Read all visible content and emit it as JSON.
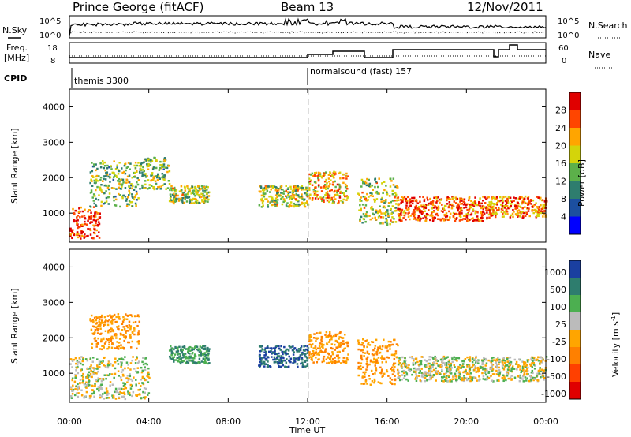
{
  "header": {
    "station": "Prince George (fitACF)",
    "beam": "Beam 13",
    "date": "12/Nov/2011"
  },
  "labels": {
    "nsky": "N.Sky",
    "nsearch": "N.Search",
    "freq_line1": "Freq.",
    "freq_line2": "[MHz]",
    "nave": "Nave",
    "cpid": "CPID",
    "sky_tick_top": "10^5",
    "sky_tick_bottom": "10^0",
    "search_tick_top": "10^5",
    "search_tick_bottom": "10^0",
    "freq_tick_top": "18",
    "freq_tick_bottom": "8",
    "nave_tick_top": "60",
    "nave_tick_bottom": "0",
    "power_label": "Power [dB]",
    "velocity_label": "Velocity [m s",
    "velocity_exp": "-1",
    "velocity_close": "]"
  },
  "cpid": [
    {
      "label": "themis 3300",
      "start_hour": 0
    },
    {
      "label": "normalsound (fast) 157",
      "start_hour": 12
    }
  ],
  "chart_data": [
    {
      "type": "heatmap",
      "title": "Power",
      "ylabel": "Slant Range [km]",
      "xlabel": "Time UT",
      "x_ticks": [
        "00:00",
        "04:00",
        "08:00",
        "12:00",
        "16:00",
        "20:00",
        "00:00"
      ],
      "y_ticks": [
        "1000",
        "2000",
        "3000",
        "4000"
      ],
      "xlim": [
        0,
        24
      ],
      "ylim": [
        180,
        4500
      ],
      "colorbar": {
        "label": "Power [dB]",
        "ticks": [
          "4",
          "8",
          "12",
          "16",
          "20",
          "24",
          "28"
        ],
        "range": [
          0,
          30
        ],
        "colors": [
          "#0000ff",
          "#1c4fa0",
          "#2e7d6e",
          "#5cb04a",
          "#d4d40a",
          "#ffa500",
          "#ff4500",
          "#e00000"
        ]
      },
      "scatter_regions": [
        {
          "hours": [
            0.0,
            1.5
          ],
          "range_km": [
            300,
            1200
          ],
          "power_db": 26
        },
        {
          "hours": [
            1.0,
            3.5
          ],
          "range_km": [
            1200,
            2500
          ],
          "power_db": 14
        },
        {
          "hours": [
            3.5,
            5.0
          ],
          "range_km": [
            1700,
            2600
          ],
          "power_db": 14
        },
        {
          "hours": [
            5.0,
            7.0
          ],
          "range_km": [
            1300,
            1800
          ],
          "power_db": 16
        },
        {
          "hours": [
            9.5,
            12.0
          ],
          "range_km": [
            1200,
            1800
          ],
          "power_db": 16
        },
        {
          "hours": [
            12.0,
            14.0
          ],
          "range_km": [
            1300,
            2200
          ],
          "power_db": 20
        },
        {
          "hours": [
            14.5,
            16.5
          ],
          "range_km": [
            700,
            2000
          ],
          "power_db": 16
        },
        {
          "hours": [
            16.5,
            21.0
          ],
          "range_km": [
            800,
            1500
          ],
          "power_db": 24
        },
        {
          "hours": [
            21.0,
            24.0
          ],
          "range_km": [
            900,
            1500
          ],
          "power_db": 22
        }
      ]
    },
    {
      "type": "heatmap",
      "title": "Velocity",
      "ylabel": "Slant Range [km]",
      "xlabel": "Time UT",
      "x_ticks": [
        "00:00",
        "04:00",
        "08:00",
        "12:00",
        "16:00",
        "20:00",
        "00:00"
      ],
      "y_ticks": [
        "1000",
        "2000",
        "3000",
        "4000"
      ],
      "xlim": [
        0,
        24
      ],
      "ylim": [
        180,
        4500
      ],
      "colorbar": {
        "label": "Velocity [m s-1]",
        "ticks": [
          "1000",
          "500",
          "100",
          "25",
          "-25",
          "-100",
          "-500",
          "-1000"
        ],
        "colors": [
          "#1a3fa0",
          "#2e7d6e",
          "#4caf50",
          "#bbbbbb",
          "#ffa500",
          "#ff8000",
          "#ff4000",
          "#e00000"
        ]
      },
      "scatter_regions": [
        {
          "hours": [
            0.0,
            4.0
          ],
          "range_km": [
            300,
            1500
          ],
          "velocity": 0
        },
        {
          "hours": [
            1.0,
            3.5
          ],
          "range_km": [
            1700,
            2700
          ],
          "velocity": -100
        },
        {
          "hours": [
            5.0,
            7.0
          ],
          "range_km": [
            1300,
            1800
          ],
          "velocity": 100
        },
        {
          "hours": [
            9.5,
            12.0
          ],
          "range_km": [
            1200,
            1800
          ],
          "velocity": 500
        },
        {
          "hours": [
            12.0,
            14.0
          ],
          "range_km": [
            1300,
            2200
          ],
          "velocity": -100
        },
        {
          "hours": [
            14.5,
            16.5
          ],
          "range_km": [
            700,
            2000
          ],
          "velocity": -100
        },
        {
          "hours": [
            16.5,
            24.0
          ],
          "range_km": [
            800,
            1500
          ],
          "velocity": 0
        }
      ]
    }
  ]
}
